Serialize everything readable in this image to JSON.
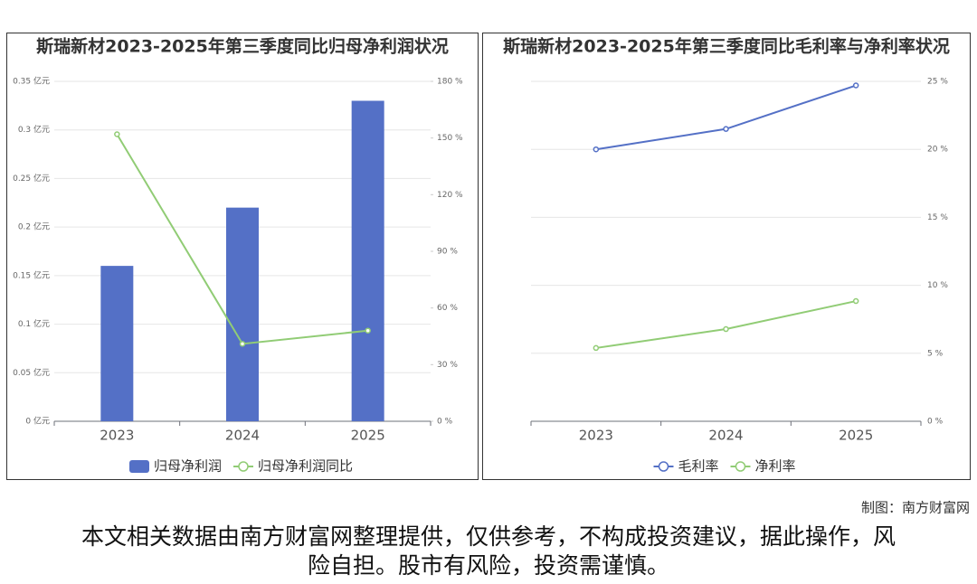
{
  "chart_data": [
    {
      "type": "bar",
      "title": "斯瑞新材2023-2025年第三季度同比归母净利润状况",
      "categories": [
        "2023",
        "2024",
        "2025"
      ],
      "series": [
        {
          "name": "归母净利润",
          "type": "bar",
          "color": "#5470c6",
          "values": [
            0.16,
            0.22,
            0.33
          ]
        },
        {
          "name": "归母净利润同比",
          "type": "line",
          "axis": "y2",
          "color": "#91cc75",
          "values": [
            152,
            41,
            48
          ]
        }
      ],
      "ylim": [
        0,
        0.35
      ],
      "yticks": [
        {
          "value": 0,
          "label": "0 亿元"
        },
        {
          "value": 0.05,
          "label": "0.05 亿元"
        },
        {
          "value": 0.1,
          "label": "0.1 亿元"
        },
        {
          "value": 0.15,
          "label": "0.15 亿元"
        },
        {
          "value": 0.2,
          "label": "0.2 亿元"
        },
        {
          "value": 0.25,
          "label": "0.25 亿元"
        },
        {
          "value": 0.3,
          "label": "0.3 亿元"
        },
        {
          "value": 0.35,
          "label": "0.35 亿元"
        }
      ],
      "y2lim": [
        0,
        180
      ],
      "y2ticks": [
        {
          "value": 0,
          "label": "0 %"
        },
        {
          "value": 30,
          "label": "30 %"
        },
        {
          "value": 60,
          "label": "60 %"
        },
        {
          "value": 90,
          "label": "90 %"
        },
        {
          "value": 120,
          "label": "120 %"
        },
        {
          "value": 150,
          "label": "150 %"
        },
        {
          "value": 180,
          "label": "180 %"
        }
      ],
      "grid": true
    },
    {
      "type": "line",
      "title": "斯瑞新材2023-2025年第三季度同比毛利率与净利率状况",
      "categories": [
        "2023",
        "2024",
        "2025"
      ],
      "series": [
        {
          "name": "毛利率",
          "color": "#5470c6",
          "values": [
            20.0,
            21.5,
            24.7
          ]
        },
        {
          "name": "净利率",
          "color": "#91cc75",
          "values": [
            5.39,
            6.78,
            8.84
          ]
        }
      ],
      "ylim": [
        0,
        25
      ],
      "yticks": [
        {
          "value": 0,
          "label": "0 %"
        },
        {
          "value": 5,
          "label": "5 %"
        },
        {
          "value": 10,
          "label": "10 %"
        },
        {
          "value": 15,
          "label": "15 %"
        },
        {
          "value": 20,
          "label": "20 %"
        },
        {
          "value": 25,
          "label": "25 %"
        }
      ],
      "grid": true
    }
  ],
  "credit": "制图：南方财富网",
  "disclaimer": "本文相关数据由南方财富网整理提供，仅供参考，不构成投资建议，据此操作，风险自担。股市有风险，投资需谨慎。"
}
